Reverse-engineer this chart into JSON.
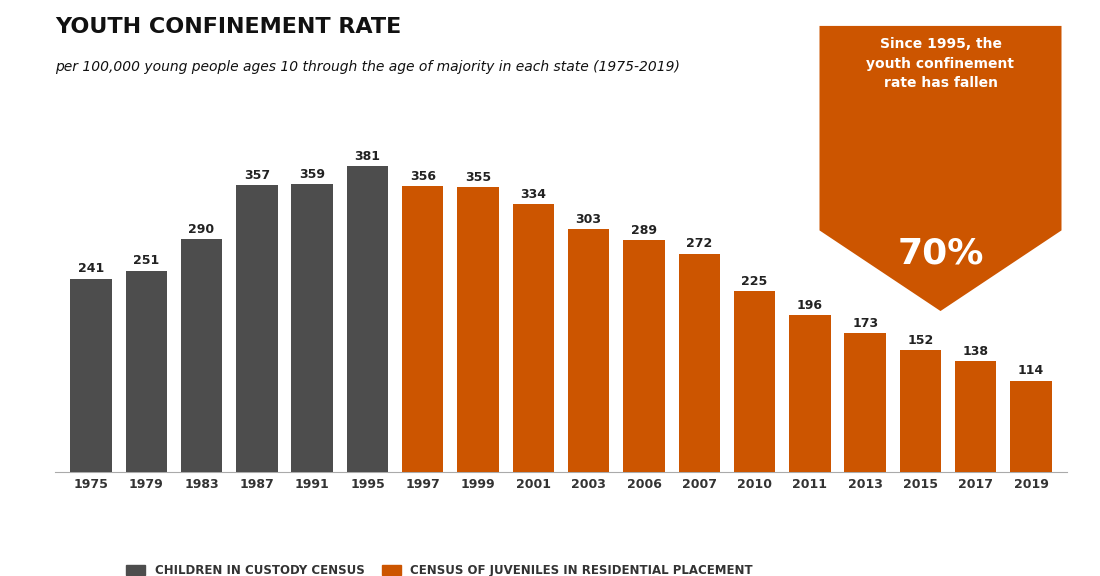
{
  "title": "YOUTH CONFINEMENT RATE",
  "subtitle": "per 100,000 young people ages 10 through the age of majority in each state (1975-2019)",
  "background_color": "#ffffff",
  "bar_data": [
    {
      "year": "1975",
      "value": 241,
      "color": "#4d4d4d"
    },
    {
      "year": "1979",
      "value": 251,
      "color": "#4d4d4d"
    },
    {
      "year": "1983",
      "value": 290,
      "color": "#4d4d4d"
    },
    {
      "year": "1987",
      "value": 357,
      "color": "#4d4d4d"
    },
    {
      "year": "1991",
      "value": 359,
      "color": "#4d4d4d"
    },
    {
      "year": "1995",
      "value": 381,
      "color": "#4d4d4d"
    },
    {
      "year": "1997",
      "value": 356,
      "color": "#cc5500"
    },
    {
      "year": "1999",
      "value": 355,
      "color": "#cc5500"
    },
    {
      "year": "2001",
      "value": 334,
      "color": "#cc5500"
    },
    {
      "year": "2003",
      "value": 303,
      "color": "#cc5500"
    },
    {
      "year": "2006",
      "value": 289,
      "color": "#cc5500"
    },
    {
      "year": "2007",
      "value": 272,
      "color": "#cc5500"
    },
    {
      "year": "2010",
      "value": 225,
      "color": "#cc5500"
    },
    {
      "year": "2011",
      "value": 196,
      "color": "#cc5500"
    },
    {
      "year": "2013",
      "value": 173,
      "color": "#cc5500"
    },
    {
      "year": "2015",
      "value": 152,
      "color": "#cc5500"
    },
    {
      "year": "2017",
      "value": 138,
      "color": "#cc5500"
    },
    {
      "year": "2019",
      "value": 114,
      "color": "#cc5500"
    }
  ],
  "legend": [
    {
      "label": "CHILDREN IN CUSTODY CENSUS",
      "color": "#4d4d4d"
    },
    {
      "label": "CENSUS OF JUVENILES IN RESIDENTIAL PLACEMENT",
      "color": "#cc5500"
    }
  ],
  "annotation_text": "Since 1995, the\nyouth confinement\nrate has fallen",
  "annotation_pct": "70%",
  "annotation_color": "#cc5500",
  "ylim": [
    0,
    430
  ],
  "title_fontsize": 16,
  "subtitle_fontsize": 10,
  "label_fontsize": 9,
  "tick_fontsize": 9
}
